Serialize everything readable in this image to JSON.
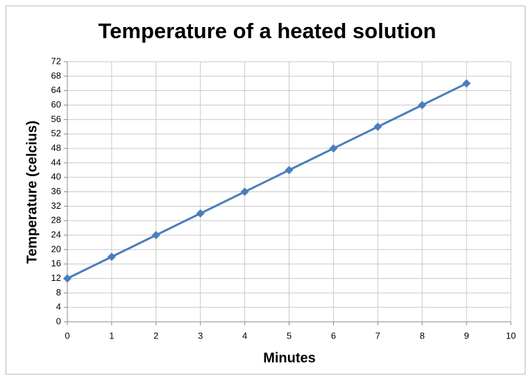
{
  "chart_data": {
    "type": "line",
    "title": "Temperature of a heated solution",
    "x_label": "Minutes",
    "y_label": "Temperature (celcius)",
    "x": [
      0,
      1,
      2,
      3,
      4,
      5,
      6,
      7,
      8,
      9
    ],
    "series": [
      {
        "name": "Temperature",
        "color": "#4a7ebb",
        "values": [
          12,
          18,
          24,
          30,
          36,
          42,
          48,
          54,
          60,
          66
        ]
      }
    ],
    "xlim": [
      0,
      10
    ],
    "xticks": [
      0,
      1,
      2,
      3,
      4,
      5,
      6,
      7,
      8,
      9,
      10
    ],
    "ylim": [
      0,
      72
    ],
    "yticks": [
      0,
      4,
      8,
      12,
      16,
      20,
      24,
      28,
      32,
      36,
      40,
      44,
      48,
      52,
      56,
      60,
      64,
      68,
      72
    ],
    "grid": true
  }
}
